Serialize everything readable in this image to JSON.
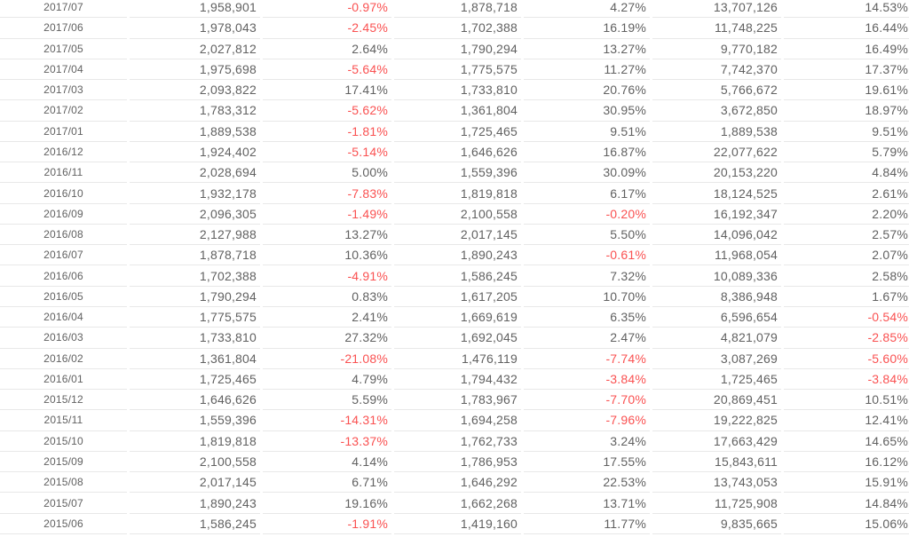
{
  "chart_data": {
    "type": "table",
    "description": "Monthly data table, no visible headers. Columns: month, monthly value, month-over-month %, prior-year-month value, year-over-year %, cumulative value, cumulative % change. Negative percentages shown in red.",
    "colors": {
      "text": "#616161",
      "negative": "#fa5151",
      "border": "#e8e8e8",
      "background": "#ffffff"
    },
    "rows": [
      [
        "2017/07",
        "1,958,901",
        "-0.97%",
        "1,878,718",
        "4.27%",
        "13,707,126",
        "14.53%"
      ],
      [
        "2017/06",
        "1,978,043",
        "-2.45%",
        "1,702,388",
        "16.19%",
        "11,748,225",
        "16.44%"
      ],
      [
        "2017/05",
        "2,027,812",
        "2.64%",
        "1,790,294",
        "13.27%",
        "9,770,182",
        "16.49%"
      ],
      [
        "2017/04",
        "1,975,698",
        "-5.64%",
        "1,775,575",
        "11.27%",
        "7,742,370",
        "17.37%"
      ],
      [
        "2017/03",
        "2,093,822",
        "17.41%",
        "1,733,810",
        "20.76%",
        "5,766,672",
        "19.61%"
      ],
      [
        "2017/02",
        "1,783,312",
        "-5.62%",
        "1,361,804",
        "30.95%",
        "3,672,850",
        "18.97%"
      ],
      [
        "2017/01",
        "1,889,538",
        "-1.81%",
        "1,725,465",
        "9.51%",
        "1,889,538",
        "9.51%"
      ],
      [
        "2016/12",
        "1,924,402",
        "-5.14%",
        "1,646,626",
        "16.87%",
        "22,077,622",
        "5.79%"
      ],
      [
        "2016/11",
        "2,028,694",
        "5.00%",
        "1,559,396",
        "30.09%",
        "20,153,220",
        "4.84%"
      ],
      [
        "2016/10",
        "1,932,178",
        "-7.83%",
        "1,819,818",
        "6.17%",
        "18,124,525",
        "2.61%"
      ],
      [
        "2016/09",
        "2,096,305",
        "-1.49%",
        "2,100,558",
        "-0.20%",
        "16,192,347",
        "2.20%"
      ],
      [
        "2016/08",
        "2,127,988",
        "13.27%",
        "2,017,145",
        "5.50%",
        "14,096,042",
        "2.57%"
      ],
      [
        "2016/07",
        "1,878,718",
        "10.36%",
        "1,890,243",
        "-0.61%",
        "11,968,054",
        "2.07%"
      ],
      [
        "2016/06",
        "1,702,388",
        "-4.91%",
        "1,586,245",
        "7.32%",
        "10,089,336",
        "2.58%"
      ],
      [
        "2016/05",
        "1,790,294",
        "0.83%",
        "1,617,205",
        "10.70%",
        "8,386,948",
        "1.67%"
      ],
      [
        "2016/04",
        "1,775,575",
        "2.41%",
        "1,669,619",
        "6.35%",
        "6,596,654",
        "-0.54%"
      ],
      [
        "2016/03",
        "1,733,810",
        "27.32%",
        "1,692,045",
        "2.47%",
        "4,821,079",
        "-2.85%"
      ],
      [
        "2016/02",
        "1,361,804",
        "-21.08%",
        "1,476,119",
        "-7.74%",
        "3,087,269",
        "-5.60%"
      ],
      [
        "2016/01",
        "1,725,465",
        "4.79%",
        "1,794,432",
        "-3.84%",
        "1,725,465",
        "-3.84%"
      ],
      [
        "2015/12",
        "1,646,626",
        "5.59%",
        "1,783,967",
        "-7.70%",
        "20,869,451",
        "10.51%"
      ],
      [
        "2015/11",
        "1,559,396",
        "-14.31%",
        "1,694,258",
        "-7.96%",
        "19,222,825",
        "12.41%"
      ],
      [
        "2015/10",
        "1,819,818",
        "-13.37%",
        "1,762,733",
        "3.24%",
        "17,663,429",
        "14.65%"
      ],
      [
        "2015/09",
        "2,100,558",
        "4.14%",
        "1,786,953",
        "17.55%",
        "15,843,611",
        "16.12%"
      ],
      [
        "2015/08",
        "2,017,145",
        "6.71%",
        "1,646,292",
        "22.53%",
        "13,743,053",
        "15.91%"
      ],
      [
        "2015/07",
        "1,890,243",
        "19.16%",
        "1,662,268",
        "13.71%",
        "11,725,908",
        "14.84%"
      ],
      [
        "2015/06",
        "1,586,245",
        "-1.91%",
        "1,419,160",
        "11.77%",
        "9,835,665",
        "15.06%"
      ]
    ]
  }
}
